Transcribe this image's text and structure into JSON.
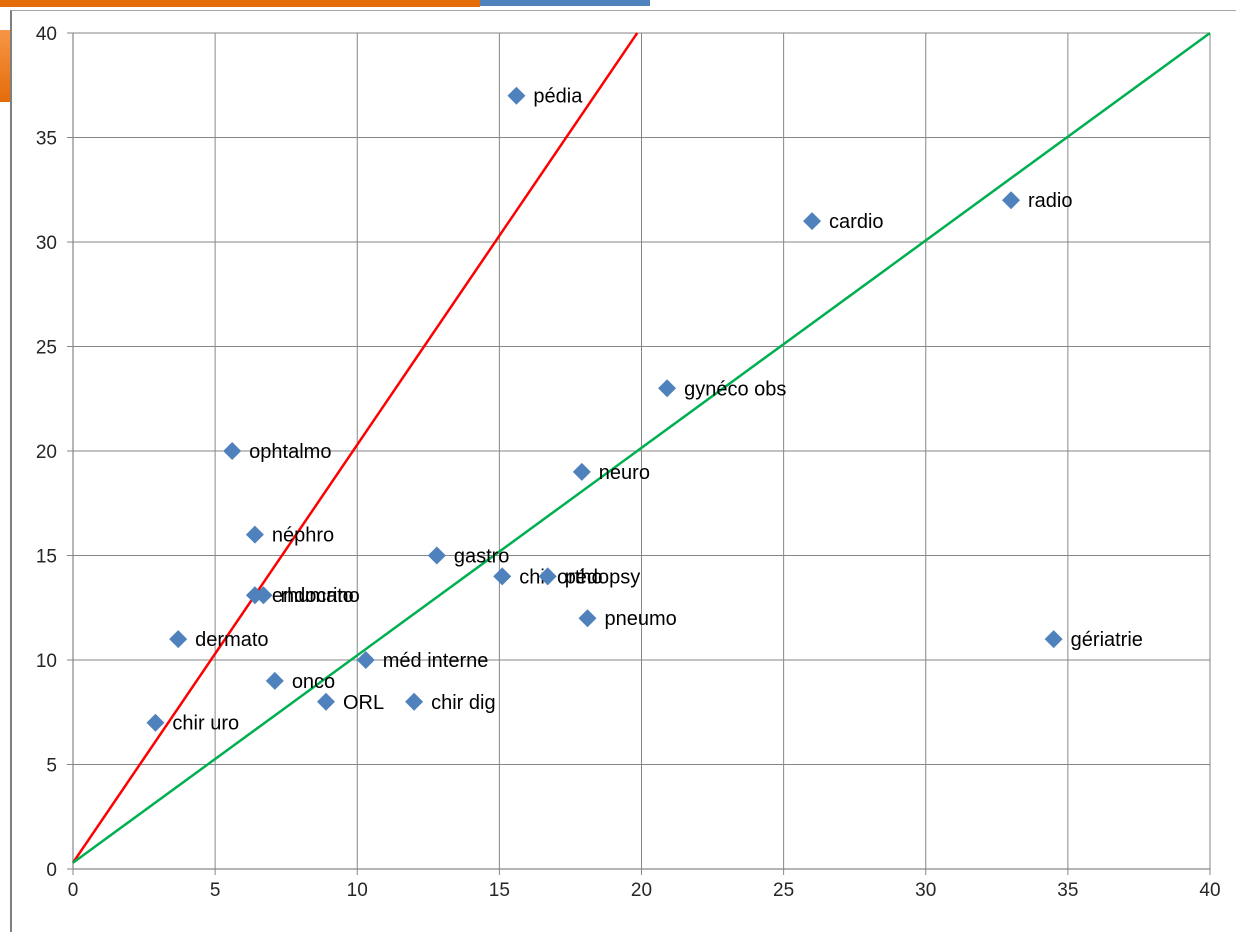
{
  "chart_data": {
    "type": "scatter",
    "title": "",
    "xlabel": "",
    "ylabel": "",
    "xlim": [
      0,
      40
    ],
    "ylim": [
      0,
      40
    ],
    "x_ticks": [
      0,
      5,
      10,
      15,
      20,
      25,
      30,
      35,
      40
    ],
    "y_ticks": [
      0,
      5,
      10,
      15,
      20,
      25,
      30,
      35,
      40
    ],
    "grid": true,
    "marker_color": "#4f81bd",
    "points": [
      {
        "label": "pédia",
        "x": 15.6,
        "y": 37
      },
      {
        "label": "radio",
        "x": 33,
        "y": 32
      },
      {
        "label": "cardio",
        "x": 26,
        "y": 31
      },
      {
        "label": "gynéco obs",
        "x": 20.9,
        "y": 23
      },
      {
        "label": "ophtalmo",
        "x": 5.6,
        "y": 20
      },
      {
        "label": "neuro",
        "x": 17.9,
        "y": 19
      },
      {
        "label": "néphro",
        "x": 6.4,
        "y": 16
      },
      {
        "label": "gastro",
        "x": 12.8,
        "y": 15
      },
      {
        "label": "chir ortho",
        "x": 15.1,
        "y": 14
      },
      {
        "label": "pédopsy",
        "x": 16.7,
        "y": 14
      },
      {
        "label": "rhumato",
        "x": 6.7,
        "y": 13.1
      },
      {
        "label": "endocrino",
        "x": 6.4,
        "y": 13.1
      },
      {
        "label": "pneumo",
        "x": 18.1,
        "y": 12
      },
      {
        "label": "gériatrie",
        "x": 34.5,
        "y": 11
      },
      {
        "label": "dermato",
        "x": 3.7,
        "y": 11
      },
      {
        "label": "méd interne",
        "x": 10.3,
        "y": 10
      },
      {
        "label": "onco",
        "x": 7.1,
        "y": 9
      },
      {
        "label": "ORL",
        "x": 8.9,
        "y": 8
      },
      {
        "label": "chir dig",
        "x": 12,
        "y": 8
      },
      {
        "label": "chir uro",
        "x": 2.9,
        "y": 7
      }
    ],
    "reference_lines": [
      {
        "color": "#ff0000",
        "from": [
          0,
          0.3
        ],
        "to": [
          19.85,
          40
        ]
      },
      {
        "color": "#00b050",
        "from": [
          0,
          0.3
        ],
        "to": [
          40,
          40
        ]
      }
    ]
  }
}
